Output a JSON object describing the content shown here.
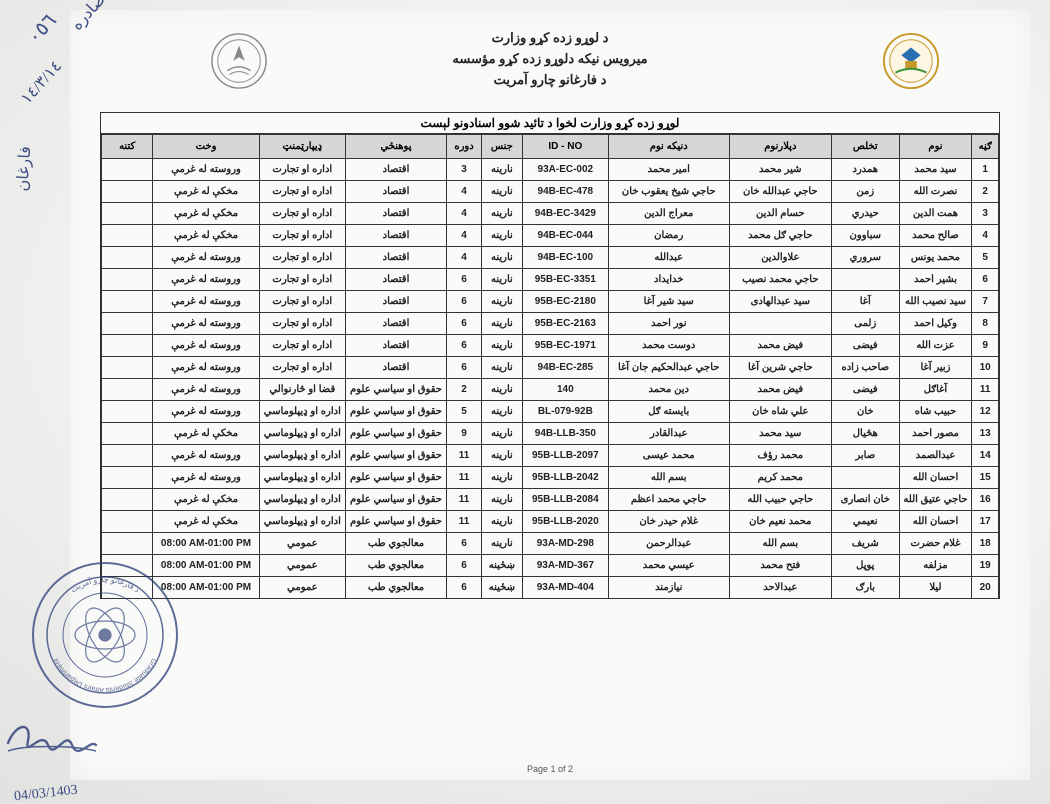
{
  "header": {
    "line1": "د لوړو زده کړو وزارت",
    "line2": "میرویس نیکه دلوړو زده کړو مؤسسه",
    "line3": "د فارغانو چارو آمریت"
  },
  "table_title": "لوړو زده کړو وزارت لخوا د تائید شوو اسنادونو لېست",
  "columns": {
    "idx": "ګڼه",
    "name": "نوم",
    "last": "تخلص",
    "father": "دپلارنوم",
    "gfather": "دنیکه نوم",
    "id": "ID - NO",
    "gender": "جنس",
    "period": "دوره",
    "faculty": "پوهنځي",
    "dept": "ډیپارټمنټ",
    "time": "وخت",
    "note": "کتنه"
  },
  "rows": [
    {
      "idx": "1",
      "name": "سید محمد",
      "last": "همدرد",
      "father": "شیر محمد",
      "gfather": "امیر محمد",
      "id": "93A-EC-002",
      "gender": "نارینه",
      "period": "3",
      "faculty": "اقتصاد",
      "dept": "اداره او تجارت",
      "time": "وروسته له غرمې",
      "note": ""
    },
    {
      "idx": "2",
      "name": "نصرت الله",
      "last": "زمن",
      "father": "حاجي عبدالله خان",
      "gfather": "حاجي شیخ یعقوب خان",
      "id": "94B-EC-478",
      "gender": "نارینه",
      "period": "4",
      "faculty": "اقتصاد",
      "dept": "اداره او تجارت",
      "time": "مخکې له غرمې",
      "note": ""
    },
    {
      "idx": "3",
      "name": "همت الدین",
      "last": "حیدري",
      "father": "حسام الدین",
      "gfather": "معراج الدین",
      "id": "94B-EC-3429",
      "gender": "نارینه",
      "period": "4",
      "faculty": "اقتصاد",
      "dept": "اداره او تجارت",
      "time": "مخکې له غرمې",
      "note": ""
    },
    {
      "idx": "4",
      "name": "صالح محمد",
      "last": "سباوون",
      "father": "حاجي ګل محمد",
      "gfather": "رمضان",
      "id": "94B-EC-044",
      "gender": "نارینه",
      "period": "4",
      "faculty": "اقتصاد",
      "dept": "اداره او تجارت",
      "time": "مخکې له غرمې",
      "note": ""
    },
    {
      "idx": "5",
      "name": "محمد یونس",
      "last": "سروري",
      "father": "علاوالدین",
      "gfather": "عبدالله",
      "id": "94B-EC-100",
      "gender": "نارینه",
      "period": "4",
      "faculty": "اقتصاد",
      "dept": "اداره او تجارت",
      "time": "وروسته له غرمې",
      "note": ""
    },
    {
      "idx": "6",
      "name": "بشیر احمد",
      "last": "",
      "father": "حاجي محمد نصیب",
      "gfather": "خدایداد",
      "id": "95B-EC-3351",
      "gender": "نارینه",
      "period": "6",
      "faculty": "اقتصاد",
      "dept": "اداره او تجارت",
      "time": "وروسته له غرمې",
      "note": ""
    },
    {
      "idx": "7",
      "name": "سید نصیب الله",
      "last": "آغا",
      "father": "سید عبدالهادی",
      "gfather": "سید شیر آغا",
      "id": "95B-EC-2180",
      "gender": "نارینه",
      "period": "6",
      "faculty": "اقتصاد",
      "dept": "اداره او تجارت",
      "time": "وروسته له غرمې",
      "note": ""
    },
    {
      "idx": "8",
      "name": "وکیل احمد",
      "last": "زلمی",
      "father": "",
      "gfather": "نور احمد",
      "id": "95B-EC-2163",
      "gender": "نارینه",
      "period": "6",
      "faculty": "اقتصاد",
      "dept": "اداره او تجارت",
      "time": "وروسته له غرمې",
      "note": ""
    },
    {
      "idx": "9",
      "name": "عزت الله",
      "last": "فیضی",
      "father": "فیض محمد",
      "gfather": "دوست محمد",
      "id": "95B-EC-1971",
      "gender": "نارینه",
      "period": "6",
      "faculty": "اقتصاد",
      "dept": "اداره او تجارت",
      "time": "وروسته له غرمې",
      "note": ""
    },
    {
      "idx": "10",
      "name": "زبیر آغا",
      "last": "صاحب زاده",
      "father": "حاجي شرین آغا",
      "gfather": "حاجي عبدالحکیم جان آغا",
      "id": "94B-EC-285",
      "gender": "نارینه",
      "period": "6",
      "faculty": "اقتصاد",
      "dept": "اداره او تجارت",
      "time": "وروسته له غرمې",
      "note": ""
    },
    {
      "idx": "11",
      "name": "آغاګل",
      "last": "فیضی",
      "father": "فیض محمد",
      "gfather": "دین محمد",
      "id": "140",
      "gender": "نارینه",
      "period": "2",
      "faculty": "حقوق او سیاسي علوم",
      "dept": "قضا او څارنوالي",
      "time": "وروسته له غرمې",
      "note": ""
    },
    {
      "idx": "12",
      "name": "حبیب شاه",
      "last": "خان",
      "father": "علي شاه خان",
      "gfather": "بایسته ګل",
      "id": "BL-079-92B",
      "gender": "نارینه",
      "period": "5",
      "faculty": "حقوق او سیاسي علوم",
      "dept": "اداره او ډیپلوماسي",
      "time": "وروسته له غرمې",
      "note": ""
    },
    {
      "idx": "13",
      "name": "مصور احمد",
      "last": "هڅیال",
      "father": "سید محمد",
      "gfather": "عبدالقادر",
      "id": "94B-LLB-350",
      "gender": "نارینه",
      "period": "9",
      "faculty": "حقوق او سیاسي علوم",
      "dept": "اداره او ډیپلوماسي",
      "time": "مخکې له غرمې",
      "note": ""
    },
    {
      "idx": "14",
      "name": "عبدالصمد",
      "last": "صابر",
      "father": "محمد رؤف",
      "gfather": "محمد عیسی",
      "id": "95B-LLB-2097",
      "gender": "نارینه",
      "period": "11",
      "faculty": "حقوق او سیاسي علوم",
      "dept": "اداره او ډیپلوماسي",
      "time": "وروسته له غرمې",
      "note": ""
    },
    {
      "idx": "15",
      "name": "احسان الله",
      "last": "",
      "father": "محمد کریم",
      "gfather": "بسم الله",
      "id": "95B-LLB-2042",
      "gender": "نارینه",
      "period": "11",
      "faculty": "حقوق او سیاسي علوم",
      "dept": "اداره او ډیپلوماسي",
      "time": "وروسته له غرمې",
      "note": ""
    },
    {
      "idx": "16",
      "name": "حاجي عتیق الله",
      "last": "خان انصاری",
      "father": "حاجي حبیب الله",
      "gfather": "حاجي محمد اعظم",
      "id": "95B-LLB-2084",
      "gender": "نارینه",
      "period": "11",
      "faculty": "حقوق او سیاسي علوم",
      "dept": "اداره او ډیپلوماسي",
      "time": "مخکې له غرمې",
      "note": ""
    },
    {
      "idx": "17",
      "name": "احسان الله",
      "last": "نعیمي",
      "father": "محمد نعیم خان",
      "gfather": "غلام حیدر خان",
      "id": "95B-LLB-2020",
      "gender": "نارینه",
      "period": "11",
      "faculty": "حقوق او سیاسي علوم",
      "dept": "اداره او ډیپلوماسي",
      "time": "مخکې له غرمې",
      "note": ""
    },
    {
      "idx": "18",
      "name": "غلام حضرت",
      "last": "شریف",
      "father": "بسم الله",
      "gfather": "عبدالرحمن",
      "id": "93A-MD-298",
      "gender": "نارینه",
      "period": "6",
      "faculty": "معالجوي طب",
      "dept": "عمومي",
      "time": "08:00 AM-01:00 PM",
      "note": ""
    },
    {
      "idx": "19",
      "name": "مزلفه",
      "last": "پوپل",
      "father": "فتح محمد",
      "gfather": "عیسي محمد",
      "id": "93A-MD-367",
      "gender": "ښځینه",
      "period": "6",
      "faculty": "معالجوي طب",
      "dept": "عمومي",
      "time": "08:00 AM-01:00 PM",
      "note": ""
    },
    {
      "idx": "20",
      "name": "لیلا",
      "last": "بارګ",
      "father": "عبدالاحد",
      "gfather": "نیازمند",
      "id": "93A-MD-404",
      "gender": "ښځینه",
      "period": "6",
      "faculty": "معالجوي طب",
      "dept": "عمومي",
      "time": "08:00 AM-01:00 PM",
      "note": ""
    }
  ],
  "page_number": "Page 1 of 2",
  "annotations": {
    "top_number": "٠٥٦",
    "top_label": "صادره",
    "top_date": "١٤/٣/١٤",
    "side_note": "فارغان",
    "bottom_date": "04/03/1403"
  },
  "colors": {
    "header_bg": "#d6d6d6",
    "border": "#333333",
    "ink": "#2a3d7a",
    "paper": "#fafaf8"
  }
}
